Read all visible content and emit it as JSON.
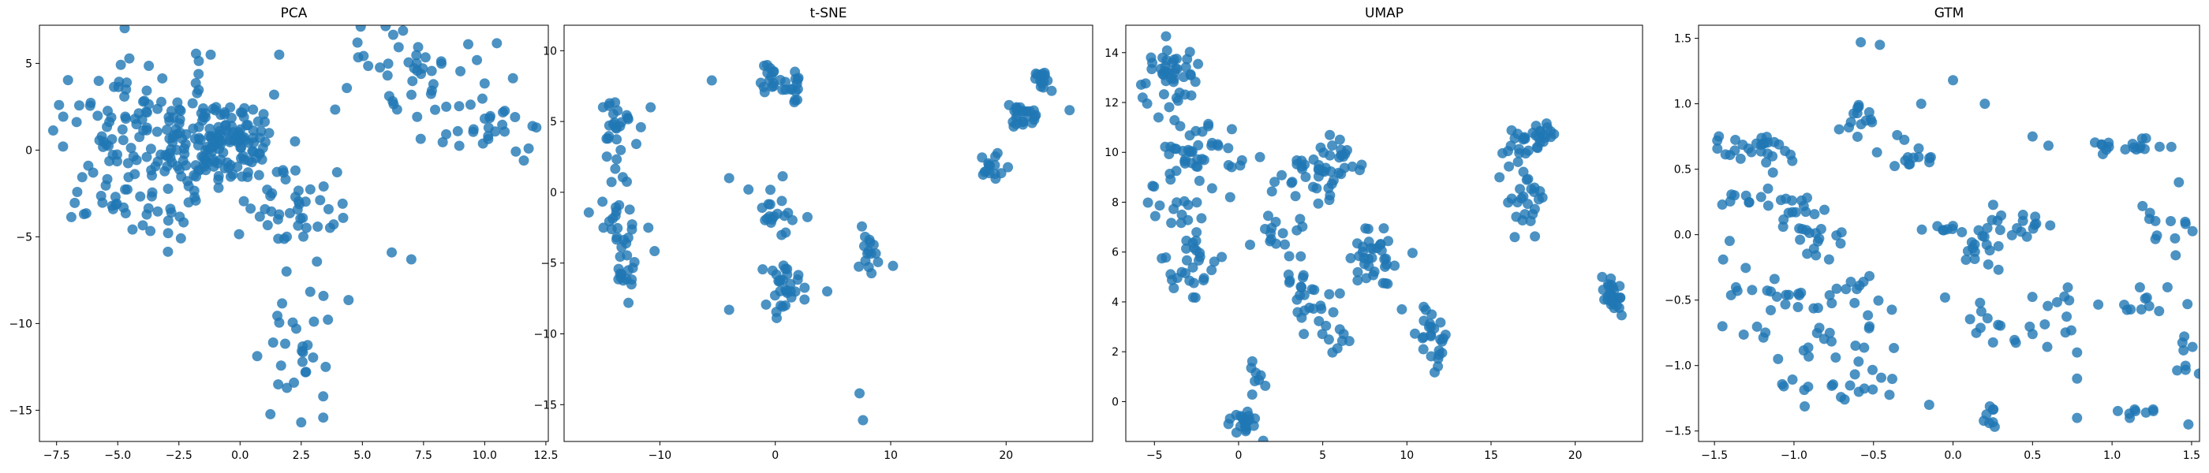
{
  "chart_data": [
    {
      "type": "scatter",
      "title": "PCA",
      "xlim": [
        -8.2,
        12.6
      ],
      "ylim": [
        -16.8,
        7.2
      ],
      "xticks": [
        -7.5,
        -5.0,
        -2.5,
        0.0,
        2.5,
        5.0,
        7.5,
        10.0,
        12.5
      ],
      "xtick_labels": [
        "−7.5",
        "−5.0",
        "−2.5",
        "0.0",
        "2.5",
        "5.0",
        "7.5",
        "10.0",
        "12.5"
      ],
      "yticks": [
        5,
        0,
        -5,
        -10,
        -15
      ],
      "ytick_labels": [
        "5",
        "0",
        "−5",
        "−10",
        "−15"
      ],
      "color": "#1f77b4",
      "clusters": [
        {
          "cx": -3.5,
          "cy": 1.0,
          "sx": 2.2,
          "sy": 2.0,
          "n": 150
        },
        {
          "cx": -0.5,
          "cy": 0.5,
          "sx": 1.0,
          "sy": 1.2,
          "n": 110
        },
        {
          "cx": 2.0,
          "cy": -3.5,
          "sx": 1.2,
          "sy": 1.2,
          "n": 40
        },
        {
          "cx": -4.5,
          "cy": -3.2,
          "sx": 1.3,
          "sy": 1.0,
          "n": 30
        },
        {
          "cx": 2.2,
          "cy": -10.5,
          "sx": 0.7,
          "sy": 2.8,
          "n": 30
        },
        {
          "cx": 7.5,
          "cy": 4.5,
          "sx": 1.5,
          "sy": 1.3,
          "n": 45
        },
        {
          "cx": 10.2,
          "cy": 1.0,
          "sx": 1.0,
          "sy": 0.9,
          "n": 25
        }
      ],
      "points": [
        {
          "x": -7.4,
          "y": 2.6
        },
        {
          "x": 1.6,
          "y": 5.5
        },
        {
          "x": 1.9,
          "y": -7.0
        },
        {
          "x": 2.5,
          "y": -15.7
        },
        {
          "x": 3.5,
          "y": -12.5
        },
        {
          "x": 3.4,
          "y": -14.2
        },
        {
          "x": 6.2,
          "y": -5.9
        },
        {
          "x": 7.0,
          "y": -6.3
        },
        {
          "x": 11.6,
          "y": -0.6
        },
        {
          "x": 4.8,
          "y": 6.2
        },
        {
          "x": -1.2,
          "y": 5.5
        }
      ]
    },
    {
      "type": "scatter",
      "title": "t-SNE",
      "xlim": [
        -18.3,
        27.5
      ],
      "ylim": [
        -17.6,
        11.8
      ],
      "xticks": [
        -10,
        0,
        10,
        20
      ],
      "xtick_labels": [
        "−10",
        "0",
        "10",
        "20"
      ],
      "yticks": [
        10,
        5,
        0,
        -5,
        -10,
        -15
      ],
      "ytick_labels": [
        "10",
        "5",
        "0",
        "−5",
        "−10",
        "−15"
      ],
      "color": "#1f77b4",
      "clusters": [
        {
          "cx": -13.5,
          "cy": 4.5,
          "sx": 1.0,
          "sy": 1.0,
          "n": 25
        },
        {
          "cx": -13.5,
          "cy": -1.5,
          "sx": 1.0,
          "sy": 1.5,
          "n": 25
        },
        {
          "cx": -13.0,
          "cy": -5.5,
          "sx": 0.8,
          "sy": 1.0,
          "n": 15
        },
        {
          "cx": -0.5,
          "cy": 8.0,
          "sx": 0.6,
          "sy": 0.5,
          "n": 15
        },
        {
          "cx": 1.8,
          "cy": 8.0,
          "sx": 0.5,
          "sy": 0.8,
          "n": 15
        },
        {
          "cx": 0.5,
          "cy": -1.2,
          "sx": 1.0,
          "sy": 1.0,
          "n": 20
        },
        {
          "cx": 1.0,
          "cy": -6.8,
          "sx": 1.0,
          "sy": 0.8,
          "n": 30
        },
        {
          "cx": 8.0,
          "cy": -4.5,
          "sx": 0.6,
          "sy": 1.0,
          "n": 15
        },
        {
          "cx": 18.5,
          "cy": 1.8,
          "sx": 0.5,
          "sy": 0.8,
          "n": 15
        },
        {
          "cx": 21.5,
          "cy": 5.5,
          "sx": 0.8,
          "sy": 0.5,
          "n": 25
        },
        {
          "cx": 23.3,
          "cy": 7.8,
          "sx": 0.4,
          "sy": 0.6,
          "n": 15
        }
      ],
      "points": [
        {
          "x": -5.5,
          "y": 7.9
        },
        {
          "x": -4.0,
          "y": 1.0
        },
        {
          "x": -4.0,
          "y": -8.3
        },
        {
          "x": 4.5,
          "y": -7.0
        },
        {
          "x": 7.3,
          "y": -14.2
        },
        {
          "x": 7.6,
          "y": -16.1
        },
        {
          "x": 10.2,
          "y": -5.2
        },
        {
          "x": 25.5,
          "y": 5.8
        },
        {
          "x": -11.0,
          "y": -2.5
        },
        {
          "x": -10.8,
          "y": 6.0
        }
      ]
    },
    {
      "type": "scatter",
      "title": "UMAP",
      "xlim": [
        -6.7,
        24.0
      ],
      "ylim": [
        -1.6,
        15.1
      ],
      "xticks": [
        -5,
        0,
        5,
        10,
        15,
        20
      ],
      "xtick_labels": [
        "−5",
        "0",
        "5",
        "10",
        "15",
        "20"
      ],
      "yticks": [
        14,
        12,
        10,
        8,
        6,
        4,
        2,
        0
      ],
      "ytick_labels": [
        "14",
        "12",
        "10",
        "8",
        "6",
        "4",
        "2",
        "0"
      ],
      "color": "#1f77b4",
      "clusters": [
        {
          "cx": -4.0,
          "cy": 13.0,
          "sx": 0.8,
          "sy": 0.8,
          "n": 45
        },
        {
          "cx": -2.5,
          "cy": 10.0,
          "sx": 1.0,
          "sy": 0.6,
          "n": 35
        },
        {
          "cx": -3.5,
          "cy": 8.0,
          "sx": 1.0,
          "sy": 0.8,
          "n": 20
        },
        {
          "cx": -3.0,
          "cy": 5.5,
          "sx": 1.0,
          "sy": 0.8,
          "n": 30
        },
        {
          "cx": 4.0,
          "cy": 9.0,
          "sx": 0.8,
          "sy": 0.6,
          "n": 25
        },
        {
          "cx": 5.8,
          "cy": 9.6,
          "sx": 0.6,
          "sy": 0.6,
          "n": 25
        },
        {
          "cx": 2.5,
          "cy": 6.6,
          "sx": 0.9,
          "sy": 0.5,
          "n": 15
        },
        {
          "cx": 4.5,
          "cy": 4.2,
          "sx": 0.8,
          "sy": 0.8,
          "n": 25
        },
        {
          "cx": 8.0,
          "cy": 5.8,
          "sx": 0.8,
          "sy": 0.7,
          "n": 35
        },
        {
          "cx": 11.5,
          "cy": 2.8,
          "sx": 0.4,
          "sy": 0.8,
          "n": 25
        },
        {
          "cx": 0.2,
          "cy": -0.8,
          "sx": 0.5,
          "sy": 0.3,
          "n": 20
        },
        {
          "cx": 1.0,
          "cy": 0.8,
          "sx": 0.3,
          "sy": 0.4,
          "n": 8
        },
        {
          "cx": 6.0,
          "cy": 2.6,
          "sx": 0.3,
          "sy": 0.3,
          "n": 8
        },
        {
          "cx": 16.8,
          "cy": 10.3,
          "sx": 0.6,
          "sy": 0.4,
          "n": 20
        },
        {
          "cx": 18.2,
          "cy": 10.6,
          "sx": 0.4,
          "sy": 0.3,
          "n": 12
        },
        {
          "cx": 17.0,
          "cy": 8.0,
          "sx": 0.6,
          "sy": 0.6,
          "n": 25
        },
        {
          "cx": 22.2,
          "cy": 4.3,
          "sx": 0.4,
          "sy": 0.4,
          "n": 25
        }
      ],
      "points": [
        {
          "x": 9.7,
          "y": 3.7
        },
        {
          "x": 11.0,
          "y": 3.8
        },
        {
          "x": -0.5,
          "y": 8.2
        },
        {
          "x": 15.5,
          "y": 9.0
        },
        {
          "x": 21.6,
          "y": 5.0
        }
      ]
    },
    {
      "type": "scatter",
      "title": "GTM",
      "xlim": [
        -1.6,
        1.55
      ],
      "ylim": [
        -1.58,
        1.6
      ],
      "xticks": [
        -1.5,
        -1.0,
        -0.5,
        0.0,
        0.5,
        1.0,
        1.5
      ],
      "xtick_labels": [
        "−1.5",
        "−1.0",
        "−0.5",
        "0.0",
        "0.5",
        "1.0",
        "1.5"
      ],
      "yticks": [
        1.5,
        1.0,
        0.5,
        0.0,
        -0.5,
        -1.0,
        -1.5
      ],
      "ytick_labels": [
        "1.5",
        "1.0",
        "0.5",
        "0.0",
        "−0.5",
        "−1.0",
        "−1.5"
      ],
      "color": "#1f77b4",
      "clusters": [
        {
          "cx": -1.3,
          "cy": 0.72,
          "sx": 0.1,
          "sy": 0.04,
          "n": 14
        },
        {
          "cx": -1.15,
          "cy": 0.65,
          "sx": 0.1,
          "sy": 0.1,
          "n": 14
        },
        {
          "cx": -0.55,
          "cy": 0.9,
          "sx": 0.08,
          "sy": 0.06,
          "n": 14
        },
        {
          "cx": -0.3,
          "cy": 0.6,
          "sx": 0.12,
          "sy": 0.06,
          "n": 14
        },
        {
          "cx": 1.1,
          "cy": 0.7,
          "sx": 0.12,
          "sy": 0.04,
          "n": 18
        },
        {
          "cx": -1.25,
          "cy": 0.26,
          "sx": 0.12,
          "sy": 0.04,
          "n": 12
        },
        {
          "cx": -0.95,
          "cy": 0.15,
          "sx": 0.1,
          "sy": 0.1,
          "n": 14
        },
        {
          "cx": -0.85,
          "cy": -0.05,
          "sx": 0.1,
          "sy": 0.1,
          "n": 14
        },
        {
          "cx": -0.05,
          "cy": 0.05,
          "sx": 0.05,
          "sy": 0.02,
          "n": 8
        },
        {
          "cx": 0.2,
          "cy": -0.08,
          "sx": 0.08,
          "sy": 0.12,
          "n": 18
        },
        {
          "cx": 0.45,
          "cy": 0.05,
          "sx": 0.12,
          "sy": 0.08,
          "n": 14
        },
        {
          "cx": 1.35,
          "cy": 0.05,
          "sx": 0.08,
          "sy": 0.1,
          "n": 12
        },
        {
          "cx": -1.35,
          "cy": -0.45,
          "sx": 0.15,
          "sy": 0.2,
          "n": 12
        },
        {
          "cx": -0.95,
          "cy": -0.45,
          "sx": 0.12,
          "sy": 0.15,
          "n": 14
        },
        {
          "cx": -0.6,
          "cy": -0.5,
          "sx": 0.12,
          "sy": 0.15,
          "n": 14
        },
        {
          "cx": 0.3,
          "cy": -0.65,
          "sx": 0.12,
          "sy": 0.1,
          "n": 12
        },
        {
          "cx": 0.62,
          "cy": -0.55,
          "sx": 0.1,
          "sy": 0.12,
          "n": 12
        },
        {
          "cx": 1.2,
          "cy": -0.55,
          "sx": 0.12,
          "sy": 0.1,
          "n": 12
        },
        {
          "cx": -0.7,
          "cy": -0.85,
          "sx": 0.15,
          "sy": 0.1,
          "n": 14
        },
        {
          "cx": -0.6,
          "cy": -1.15,
          "sx": 0.12,
          "sy": 0.06,
          "n": 12
        },
        {
          "cx": -1.05,
          "cy": -1.2,
          "sx": 0.08,
          "sy": 0.05,
          "n": 6
        },
        {
          "cx": 0.2,
          "cy": -1.38,
          "sx": 0.06,
          "sy": 0.06,
          "n": 8
        },
        {
          "cx": 1.15,
          "cy": -1.35,
          "sx": 0.06,
          "sy": 0.03,
          "n": 8
        },
        {
          "cx": 1.45,
          "cy": -1.0,
          "sx": 0.04,
          "sy": 0.12,
          "n": 8
        }
      ],
      "points": [
        {
          "x": -0.58,
          "y": 1.47
        },
        {
          "x": -0.46,
          "y": 1.45
        },
        {
          "x": 0.0,
          "y": 1.18
        },
        {
          "x": 0.2,
          "y": 1.0
        },
        {
          "x": -0.2,
          "y": 1.0
        },
        {
          "x": -0.05,
          "y": -0.48
        },
        {
          "x": 1.48,
          "y": -1.45
        },
        {
          "x": 0.78,
          "y": -1.4
        },
        {
          "x": -0.15,
          "y": -1.3
        },
        {
          "x": -1.45,
          "y": -0.7
        },
        {
          "x": 1.42,
          "y": 0.4
        },
        {
          "x": 0.5,
          "y": 0.75
        },
        {
          "x": 0.6,
          "y": 0.68
        },
        {
          "x": 0.78,
          "y": -0.9
        },
        {
          "x": 0.78,
          "y": -1.1
        },
        {
          "x": -1.1,
          "y": -0.95
        }
      ]
    }
  ]
}
